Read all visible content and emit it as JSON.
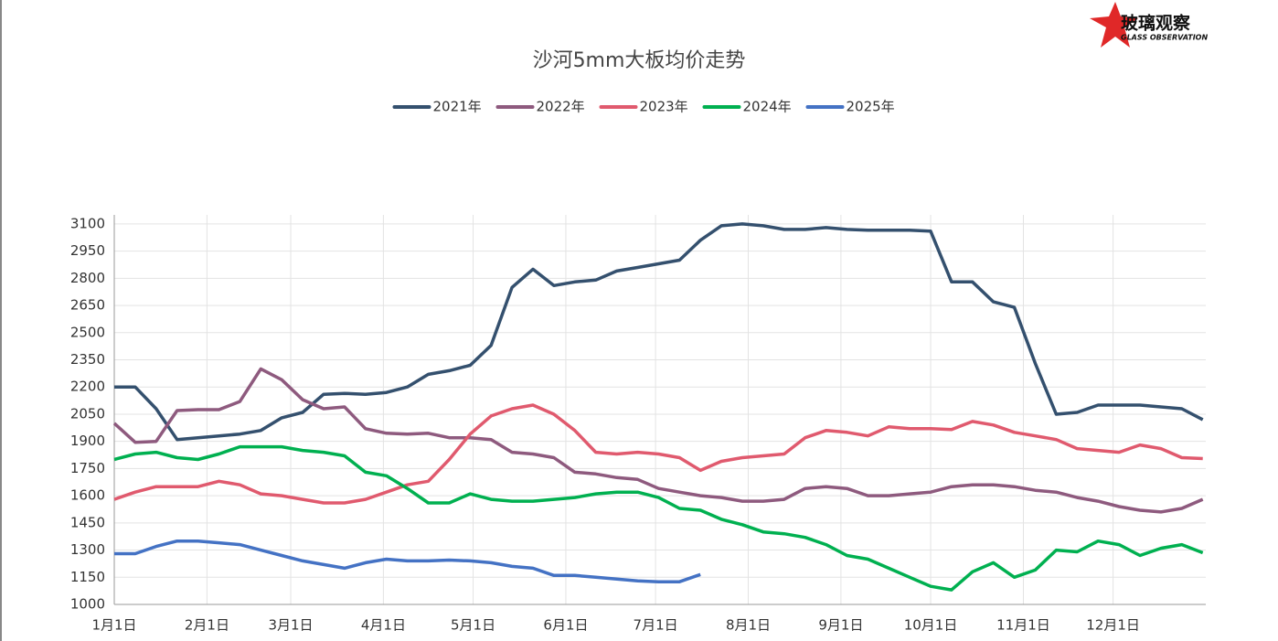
{
  "logo": {
    "text": "玻璃观察",
    "subtitle": "GLASS OBSERVATION"
  },
  "chart_data": {
    "type": "line",
    "title": "沙河5mm大板均价走势",
    "grid": true,
    "legend": "top",
    "x": [
      0,
      7,
      14,
      21,
      28,
      35,
      42,
      49,
      56,
      63,
      70,
      77,
      84,
      91,
      98,
      105,
      112,
      119,
      126,
      133,
      140,
      147,
      154,
      161,
      168,
      175,
      182,
      189,
      196,
      203,
      210,
      217,
      224,
      231,
      238,
      245,
      252,
      259,
      266,
      273,
      280,
      287,
      294,
      301,
      308,
      315,
      322,
      329,
      336,
      343,
      350,
      357,
      364
    ],
    "xlim": [
      0,
      365
    ],
    "xticks": [
      {
        "value": 0,
        "label": "1月1日"
      },
      {
        "value": 31,
        "label": "2月1日"
      },
      {
        "value": 59,
        "label": "3月1日"
      },
      {
        "value": 90,
        "label": "4月1日"
      },
      {
        "value": 120,
        "label": "5月1日"
      },
      {
        "value": 151,
        "label": "6月1日"
      },
      {
        "value": 181,
        "label": "7月1日"
      },
      {
        "value": 212,
        "label": "8月1日"
      },
      {
        "value": 243,
        "label": "9月1日"
      },
      {
        "value": 273,
        "label": "10月1日"
      },
      {
        "value": 304,
        "label": "11月1日"
      },
      {
        "value": 334,
        "label": "12月1日"
      }
    ],
    "ylim": [
      1000,
      3150
    ],
    "yticks": [
      1000,
      1150,
      1300,
      1450,
      1600,
      1750,
      1900,
      2050,
      2200,
      2350,
      2500,
      2650,
      2800,
      2950,
      3100
    ],
    "series": [
      {
        "name": "2021年",
        "color": "#34506e",
        "values": [
          2200,
          2200,
          2080,
          1910,
          1920,
          1930,
          1940,
          1960,
          2030,
          2060,
          2160,
          2165,
          2160,
          2170,
          2200,
          2270,
          2290,
          2320,
          2430,
          2750,
          2850,
          2760,
          2780,
          2790,
          2840,
          2860,
          2880,
          2900,
          3010,
          3090,
          3100,
          3090,
          3070,
          3070,
          3080,
          3070,
          3065,
          3065,
          3065,
          3060,
          2780,
          2780,
          2670,
          2640,
          2330,
          2050,
          2060,
          2100,
          2100,
          2100,
          2090,
          2080,
          2020
        ]
      },
      {
        "name": "2022年",
        "color": "#8e5a7e",
        "values": [
          2000,
          1895,
          1900,
          2070,
          2075,
          2075,
          2120,
          2300,
          2240,
          2130,
          2080,
          2090,
          1970,
          1945,
          1940,
          1945,
          1920,
          1920,
          1910,
          1840,
          1830,
          1810,
          1730,
          1720,
          1700,
          1690,
          1640,
          1620,
          1600,
          1590,
          1570,
          1570,
          1580,
          1640,
          1650,
          1640,
          1600,
          1600,
          1610,
          1620,
          1650,
          1660,
          1660,
          1650,
          1630,
          1620,
          1590,
          1570,
          1540,
          1520,
          1510,
          1530,
          1580
        ]
      },
      {
        "name": "2023年",
        "color": "#e05a6e",
        "values": [
          1580,
          1620,
          1650,
          1650,
          1650,
          1680,
          1660,
          1610,
          1600,
          1580,
          1560,
          1560,
          1580,
          1620,
          1660,
          1680,
          1800,
          1940,
          2040,
          2080,
          2100,
          2050,
          1960,
          1840,
          1830,
          1840,
          1830,
          1810,
          1740,
          1790,
          1810,
          1820,
          1830,
          1920,
          1960,
          1950,
          1930,
          1980,
          1970,
          1970,
          1965,
          2010,
          1990,
          1950,
          1930,
          1910,
          1860,
          1850,
          1840,
          1880,
          1860,
          1810,
          1805
        ]
      },
      {
        "name": "2024年",
        "color": "#00b050",
        "values": [
          1800,
          1830,
          1840,
          1810,
          1800,
          1830,
          1870,
          1870,
          1870,
          1850,
          1840,
          1820,
          1730,
          1710,
          1640,
          1560,
          1560,
          1610,
          1580,
          1570,
          1570,
          1580,
          1590,
          1610,
          1620,
          1620,
          1590,
          1530,
          1520,
          1470,
          1440,
          1400,
          1390,
          1370,
          1330,
          1270,
          1250,
          1200,
          1150,
          1100,
          1080,
          1180,
          1230,
          1150,
          1190,
          1300,
          1290,
          1350,
          1330,
          1270,
          1310,
          1330,
          1285
        ]
      },
      {
        "name": "2025年",
        "color": "#4472c4",
        "values": [
          1280,
          1280,
          1320,
          1350,
          1350,
          1340,
          1330,
          1300,
          1270,
          1240,
          1220,
          1200,
          1230,
          1250,
          1240,
          1240,
          1245,
          1240,
          1230,
          1210,
          1200,
          1160,
          1160,
          1150,
          1140,
          1130,
          1125,
          1125,
          1165,
          null,
          null,
          null,
          null,
          null,
          null,
          null,
          null,
          null,
          null,
          null,
          null,
          null,
          null,
          null,
          null,
          null,
          null,
          null,
          null,
          null,
          null,
          null,
          null
        ]
      }
    ]
  }
}
